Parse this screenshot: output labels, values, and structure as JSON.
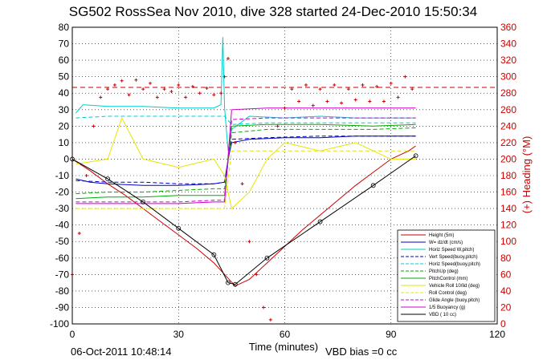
{
  "chart_data": {
    "type": "line",
    "title": "SG502 RossSea Nov 2010, dive 328 started 24-Dec-2010 15:50:34",
    "xlabel": "Time (minutes)",
    "ylabel": "",
    "ylabel_right": "(+) Heading (°M)",
    "xlim": [
      0,
      120
    ],
    "ylim": [
      -100,
      80
    ],
    "ylim_right": [
      0,
      360
    ],
    "x_ticks": [
      "0",
      "30",
      "60",
      "90",
      "120"
    ],
    "y_ticks": [
      "-100",
      "-90",
      "-80",
      "-70",
      "-60",
      "-50",
      "-40",
      "-30",
      "-20",
      "-10",
      "0",
      "10",
      "20",
      "30",
      "40",
      "50",
      "60",
      "70",
      "80"
    ],
    "y_right_ticks": [
      "0",
      "20",
      "40",
      "60",
      "80",
      "100",
      "120",
      "140",
      "160",
      "180",
      "200",
      "220",
      "240",
      "260",
      "280",
      "300",
      "320",
      "340",
      "360"
    ],
    "grid": true,
    "legend_position": "bottom-right",
    "footer_date": "06-Oct-2011 10:48:14",
    "footer_bias": "VBD bias =0 cc",
    "series": [
      {
        "name": "Height (5m)",
        "color": "#cc0000",
        "style": "solid",
        "x": [
          0,
          5,
          10,
          15,
          20,
          25,
          30,
          35,
          40,
          43,
          46,
          50,
          55,
          60,
          65,
          70,
          75,
          80,
          85,
          90,
          95,
          97
        ],
        "y": [
          0,
          -7,
          -15,
          -22,
          -30,
          -38,
          -46,
          -54,
          -63,
          -70,
          -77,
          -73,
          -63,
          -53,
          -43,
          -34,
          -25,
          -16,
          -8,
          0,
          5,
          8
        ]
      },
      {
        "name": "W= dz/dt (cm/s)",
        "color": "#0000cc",
        "style": "solid",
        "x": [
          1,
          5,
          10,
          20,
          30,
          40,
          43,
          44,
          45,
          50,
          60,
          70,
          80,
          90,
          97
        ],
        "y": [
          -12,
          -14,
          -15,
          -16,
          -16,
          -15,
          -14,
          0,
          10,
          12,
          13,
          13,
          14,
          14,
          14
        ]
      },
      {
        "name": "Horiz Speed W,pitch)",
        "color": "#00cccc",
        "style": "solid",
        "x": [
          1,
          3,
          10,
          20,
          30,
          40,
          42,
          42.5,
          43,
          44,
          45,
          50,
          60,
          70,
          80,
          90,
          97
        ],
        "y": [
          28,
          33,
          32,
          32,
          31,
          31,
          33,
          74,
          31,
          5,
          18,
          26,
          25,
          26,
          25,
          25,
          25
        ]
      },
      {
        "name": "Vert Speed(buoy,pitch)",
        "color": "#0000cc",
        "style": "dashed",
        "x": [
          1,
          10,
          20,
          30,
          40,
          43,
          45,
          55,
          70,
          85,
          97
        ],
        "y": [
          -13,
          -14,
          -14,
          -15,
          -15,
          -14,
          12,
          13,
          14,
          14,
          14
        ]
      },
      {
        "name": "Horiz Speed(buoy,pitch)",
        "color": "#00cccc",
        "style": "dashed",
        "x": [
          1,
          10,
          20,
          30,
          40,
          43,
          45,
          55,
          70,
          85,
          97
        ],
        "y": [
          25,
          26,
          26,
          26,
          26,
          26,
          21,
          22,
          22,
          22,
          22
        ]
      },
      {
        "name": "PitchUp (deg)",
        "color": "#00aa00",
        "style": "dashed",
        "x": [
          1,
          10,
          20,
          30,
          40,
          43,
          45,
          55,
          70,
          85,
          97
        ],
        "y": [
          -21,
          -20,
          -20,
          -19,
          -18,
          -18,
          16,
          18,
          18,
          18,
          19
        ]
      },
      {
        "name": "PitchControl (mm)",
        "color": "#00aa00",
        "style": "solid",
        "x": [
          1,
          10,
          20,
          30,
          40,
          43,
          45,
          55,
          70,
          85,
          97
        ],
        "y": [
          -24,
          -23,
          -23,
          -22,
          -22,
          -22,
          20,
          21,
          21,
          20,
          21
        ]
      },
      {
        "name": "Vehicle Roll 10/lid (deg)",
        "color": "#e6e600",
        "style": "solid",
        "x": [
          1,
          10,
          14,
          20,
          30,
          40,
          43,
          45,
          50,
          55,
          60,
          70,
          80,
          90,
          97
        ],
        "y": [
          -3,
          0,
          25,
          0,
          -5,
          0,
          -10,
          -30,
          -20,
          0,
          10,
          5,
          10,
          0,
          0
        ]
      },
      {
        "name": "Roll Control (deg)",
        "color": "#e6e600",
        "style": "dashed",
        "x": [
          1,
          10,
          20,
          30,
          40,
          43,
          45,
          55,
          70,
          85,
          97
        ],
        "y": [
          -30,
          -30,
          -30,
          -30,
          -30,
          -30,
          5,
          5,
          5,
          5,
          5
        ]
      },
      {
        "name": "Glide Angle (buoy,pitch)",
        "color": "#cc00cc",
        "style": "dashed",
        "x": [
          1,
          10,
          20,
          30,
          40,
          43,
          45,
          55,
          70,
          85,
          97
        ],
        "y": [
          -26,
          -26,
          -26,
          -26,
          -25,
          -25,
          24,
          25,
          25,
          25,
          25
        ]
      },
      {
        "name": "1/5 Buoyancy (g)",
        "color": "#cc00cc",
        "style": "solid",
        "x": [
          1,
          10,
          20,
          30,
          40,
          43,
          45,
          55,
          70,
          85,
          97
        ],
        "y": [
          -27,
          -27,
          -27,
          -27,
          -26,
          -26,
          30,
          31,
          31,
          31,
          31
        ]
      },
      {
        "name": "VBD ( 10 cc)",
        "color": "#000000",
        "style": "solid",
        "x": [
          0,
          10,
          20,
          30,
          40,
          44,
          46,
          55,
          70,
          85,
          97
        ],
        "y": [
          0,
          -12,
          -26,
          -42,
          -58,
          -75,
          -76,
          -60,
          -38,
          -16,
          2
        ]
      }
    ],
    "heading": {
      "color": "#cc0000",
      "marker": "+",
      "x": [
        0,
        2,
        4,
        6,
        8,
        10,
        12,
        14,
        16,
        18,
        20,
        22,
        24,
        26,
        28,
        30,
        32,
        34,
        36,
        38,
        40,
        42,
        43,
        44,
        46,
        48,
        50,
        52,
        54,
        56,
        58,
        60,
        62,
        64,
        66,
        68,
        70,
        72,
        74,
        76,
        78,
        80,
        82,
        84,
        86,
        88,
        90,
        92,
        94,
        96
      ],
      "y_deg": [
        60,
        110,
        180,
        240,
        275,
        285,
        290,
        295,
        278,
        296,
        285,
        292,
        275,
        285,
        282,
        290,
        275,
        288,
        280,
        286,
        278,
        280,
        300,
        322,
        220,
        170,
        100,
        60,
        20,
        5,
        240,
        262,
        285,
        270,
        290,
        265,
        285,
        270,
        290,
        268,
        285,
        272,
        290,
        270,
        288,
        270,
        292,
        275,
        300,
        285
      ]
    },
    "reference_lines": [
      {
        "name": "heading target",
        "color": "#cc0000",
        "style": "dashed",
        "y_deg": 287
      }
    ]
  }
}
